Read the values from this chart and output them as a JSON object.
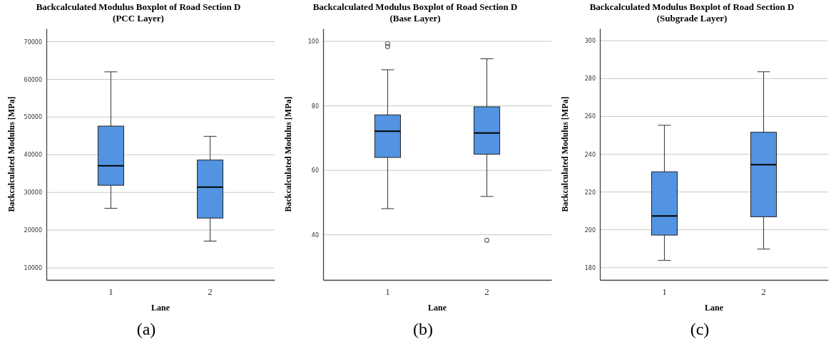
{
  "chart_data": [
    {
      "type": "box",
      "title": "Backcalculated Modulus Boxplot of Road Section D\n(PCC Layer)",
      "xlabel": "Lane",
      "ylabel": "Backcalculated Modulus [MPa]",
      "categories": [
        "1",
        "2"
      ],
      "color": "#5294e2",
      "ylim": [
        6800,
        73500
      ],
      "yticks": [
        10000,
        20000,
        30000,
        40000,
        50000,
        60000,
        70000
      ],
      "grid": "y",
      "annotations": [
        "(a)"
      ],
      "boxes": [
        {
          "low": 25800,
          "q1": 31900,
          "median": 37100,
          "q3": 47600,
          "high": 62000
        },
        {
          "low": 17100,
          "q1": 23200,
          "median": 31400,
          "q3": 38600,
          "high": 44900
        }
      ]
    },
    {
      "type": "box",
      "title": "Backcalculated Modulus Boxplot of Road Section D\n(Base Layer)",
      "xlabel": "Lane",
      "ylabel": "Backcalculated Modulus [MPa]",
      "categories": [
        "1",
        "2"
      ],
      "color": "#5294e2",
      "ylim": [
        26,
        104
      ],
      "yticks": [
        40,
        60,
        80,
        100
      ],
      "grid": "y",
      "annotations": [
        "(b)"
      ],
      "boxes": [
        {
          "low": 48.1,
          "q1": 64.0,
          "median": 72.1,
          "q3": 77.2,
          "high": 91.2,
          "outliers": [
            98.4,
            99.3
          ]
        },
        {
          "low": 51.9,
          "q1": 65.0,
          "median": 71.6,
          "q3": 79.7,
          "high": 94.6,
          "outliers": [
            38.3
          ]
        }
      ]
    },
    {
      "type": "box",
      "title": "Backcalculated Modulus Boxplot of Road Section D\n(Subgrade Layer)",
      "xlabel": "Lane",
      "ylabel": "Backcalculated Modulus [MPa]",
      "categories": [
        "1",
        "2"
      ],
      "color": "#5294e2",
      "ylim": [
        173.5,
        306.5
      ],
      "yticks": [
        180,
        200,
        220,
        240,
        260,
        280,
        300
      ],
      "grid": "y",
      "annotations": [
        "(c)"
      ],
      "boxes": [
        {
          "low": 183.8,
          "q1": 197.2,
          "median": 207.3,
          "q3": 230.7,
          "high": 255.3
        },
        {
          "low": 189.8,
          "q1": 206.9,
          "median": 234.4,
          "q3": 251.6,
          "high": 283.6
        }
      ]
    }
  ]
}
